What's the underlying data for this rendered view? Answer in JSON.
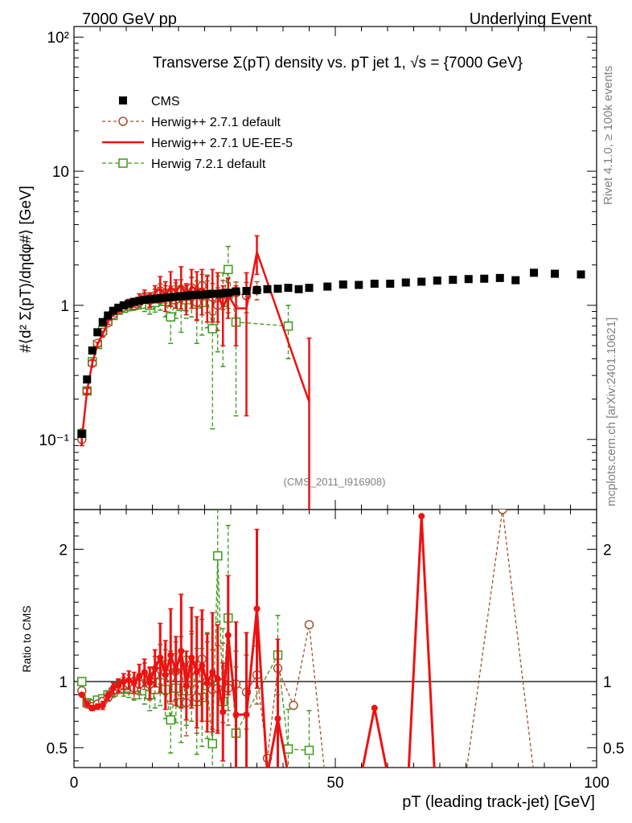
{
  "header": {
    "left": "7000 GeV pp",
    "right": "Underlying Event"
  },
  "side_labels": {
    "rivet": "Rivet 4.1.0, ≥ 100k events",
    "mcplots": "mcplots.cern.ch [arXiv:2401.10621]"
  },
  "chart_data": [
    {
      "type": "scatter",
      "panel": "main",
      "title": "Transverse Σ(pT) density vs. pT jet 1, √s = {7000 GeV}",
      "ylabel": "#⟨d² Σ(pT)/dηdφ#⟩ [GeV]",
      "xlabel": "pT (leading track-jet) [GeV]",
      "xlim": [
        0,
        100
      ],
      "ylim": [
        0.03,
        120
      ],
      "yscale": "log",
      "watermark": "(CMS_2011_I916908)",
      "y_tick_labels": [
        "10⁻¹",
        "1",
        "10",
        "10²"
      ],
      "x_tick_labels": [
        "0",
        "50",
        "100"
      ],
      "legend": [
        "CMS",
        "Herwig++ 2.7.1 default",
        "Herwig++ 2.7.1 UE-EE-5",
        "Herwig 7.2.1 default"
      ],
      "series": [
        {
          "name": "CMS",
          "color": "#000000",
          "marker": "filled-square",
          "x": [
            1.5,
            2.5,
            3.5,
            4.5,
            5.5,
            6.5,
            7.5,
            8.5,
            9.5,
            10.5,
            11.5,
            12.5,
            13.5,
            14.5,
            15.5,
            16.5,
            17.5,
            18.5,
            19.5,
            20.5,
            21.5,
            22.5,
            23.5,
            24.5,
            25.5,
            26.5,
            27.5,
            28.5,
            29.5,
            31,
            33,
            35,
            37,
            39,
            41,
            43,
            45,
            48.5,
            51.5,
            54.5,
            57.5,
            60.5,
            63.5,
            66.5,
            69.5,
            72.5,
            75.5,
            78.5,
            81.5,
            84.5,
            88,
            92,
            97
          ],
          "values": [
            0.11,
            0.28,
            0.46,
            0.63,
            0.75,
            0.84,
            0.91,
            0.96,
            1.0,
            1.03,
            1.06,
            1.08,
            1.1,
            1.11,
            1.12,
            1.13,
            1.14,
            1.15,
            1.16,
            1.17,
            1.18,
            1.19,
            1.2,
            1.2,
            1.21,
            1.22,
            1.22,
            1.23,
            1.24,
            1.27,
            1.28,
            1.3,
            1.32,
            1.33,
            1.35,
            1.32,
            1.35,
            1.38,
            1.43,
            1.42,
            1.45,
            1.45,
            1.48,
            1.5,
            1.53,
            1.55,
            1.57,
            1.58,
            1.6,
            1.54,
            1.75,
            1.72,
            1.7
          ]
        },
        {
          "name": "Herwig++ 2.7.1 default",
          "color": "#a0522d",
          "marker": "open-circle",
          "dash": "4,3",
          "x": [
            1.5,
            2.5,
            3.5,
            4.5,
            5.5,
            6.5,
            7.5,
            8.5,
            9.5,
            10.5,
            11.5,
            12.5,
            13.5,
            14.5,
            15.5,
            16.5,
            17.5,
            18.5,
            19.5,
            20.5,
            21.5,
            22.5,
            23.5,
            24.5,
            25.5,
            26.5,
            27.5,
            28.5,
            29.5,
            31,
            33,
            35
          ],
          "values": [
            0.1,
            0.23,
            0.37,
            0.52,
            0.63,
            0.74,
            0.85,
            0.92,
            0.97,
            1.01,
            1.0,
            1.06,
            1.14,
            1.09,
            1.18,
            1.28,
            1.22,
            1.19,
            1.25,
            1.31,
            1.16,
            1.35,
            1.05,
            1.4,
            1.2,
            1.15,
            1.0,
            1.23,
            1.18,
            1.24,
            1.18,
            1.3
          ],
          "errors": [
            0.01,
            0.01,
            0.02,
            0.02,
            0.03,
            0.03,
            0.04,
            0.04,
            0.05,
            0.06,
            0.07,
            0.08,
            0.1,
            0.12,
            0.14,
            0.16,
            0.18,
            0.2,
            0.22,
            0.24,
            0.25,
            0.26,
            0.28,
            0.3,
            0.32,
            0.3,
            0.35,
            0.3,
            0.3,
            0.25,
            0.3,
            0.2
          ]
        },
        {
          "name": "Herwig++ 2.7.1 UE-EE-5",
          "color": "#ee1111",
          "marker": "none",
          "x": [
            1.5,
            2.5,
            3.5,
            4.5,
            5.5,
            6.5,
            7.5,
            8.5,
            9.5,
            10.5,
            11.5,
            12.5,
            13.5,
            14.5,
            15.5,
            16.5,
            17.5,
            18.5,
            19.5,
            20.5,
            21.5,
            22.5,
            23.5,
            24.5,
            25.5,
            26.5,
            27.5,
            28.5,
            29.5,
            31,
            33,
            35,
            45
          ],
          "values": [
            0.1,
            0.23,
            0.37,
            0.51,
            0.61,
            0.75,
            0.87,
            0.93,
            1.0,
            1.04,
            1.05,
            1.12,
            1.18,
            1.1,
            1.24,
            1.34,
            1.2,
            1.38,
            1.25,
            1.44,
            1.15,
            1.4,
            1.28,
            1.35,
            1.2,
            1.3,
            1.25,
            0.95,
            1.2,
            0.95,
            0.95,
            2.5,
            0.19
          ],
          "errors": [
            0.01,
            0.01,
            0.02,
            0.02,
            0.03,
            0.03,
            0.04,
            0.05,
            0.06,
            0.07,
            0.08,
            0.1,
            0.12,
            0.14,
            0.16,
            0.3,
            0.3,
            0.4,
            0.3,
            0.5,
            0.3,
            0.45,
            0.5,
            0.5,
            0.45,
            0.55,
            0.5,
            0.45,
            0.4,
            0.45,
            0.8,
            0.8,
            0.38
          ]
        },
        {
          "name": "Herwig 7.2.1 default",
          "color": "#3a9a1a",
          "marker": "open-square",
          "dash": "5,3",
          "x": [
            1.5,
            2.5,
            3.5,
            4.5,
            5.5,
            6.5,
            7.5,
            8.5,
            9.5,
            10.5,
            11.5,
            12.5,
            13.5,
            14.5,
            15.5,
            16.5,
            17.5,
            18.5,
            19.5,
            20.5,
            21.5,
            22.5,
            23.5,
            24.5,
            25.5,
            26.5,
            27.5,
            28.5,
            29.5,
            31,
            41
          ],
          "values": [
            0.11,
            0.23,
            0.38,
            0.51,
            0.65,
            0.76,
            0.84,
            0.92,
            0.95,
            0.98,
            1.0,
            1.04,
            1.02,
            1.0,
            1.05,
            1.12,
            1.07,
            0.82,
            1.1,
            0.98,
            1.1,
            1.22,
            1.02,
            1.05,
            1.18,
            0.67,
            1.05,
            1.05,
            1.85,
            0.75,
            0.7
          ],
          "errors": [
            0.01,
            0.01,
            0.02,
            0.02,
            0.03,
            0.03,
            0.04,
            0.05,
            0.06,
            0.07,
            0.08,
            0.1,
            0.12,
            0.14,
            0.16,
            0.2,
            0.25,
            0.3,
            0.3,
            0.35,
            0.3,
            0.4,
            0.5,
            0.45,
            0.5,
            0.55,
            0.6,
            0.7,
            0.9,
            0.6,
            0.3
          ]
        }
      ]
    },
    {
      "type": "line",
      "panel": "ratio",
      "ylabel": "Ratio to CMS",
      "xlim": [
        0,
        100
      ],
      "ylim": [
        0.35,
        2.3
      ],
      "reference": 1,
      "y_tick_labels": [
        "0.5",
        "1",
        "2"
      ],
      "series": [
        {
          "name": "Herwig++ 2.7.1 default",
          "color": "#a0522d",
          "dash": "4,3",
          "marker": "open-circle",
          "x": [
            1.5,
            2.5,
            3.5,
            4.5,
            5.5,
            6.5,
            7.5,
            8.5,
            9.5,
            10.5,
            11.5,
            12.5,
            13.5,
            14.5,
            15.5,
            16.5,
            17.5,
            18.5,
            19.5,
            20.5,
            21.5,
            22.5,
            23.5,
            24.5,
            25.5,
            26.5,
            27.5,
            28.5,
            29.5,
            31,
            33,
            35,
            37,
            39,
            42,
            45,
            48,
            57,
            66,
            75,
            82,
            88
          ],
          "values": [
            0.93,
            0.83,
            0.81,
            0.83,
            0.85,
            0.88,
            0.93,
            0.96,
            0.97,
            0.98,
            0.95,
            0.98,
            1.04,
            0.98,
            1.05,
            1.13,
            1.07,
            1.03,
            1.08,
            1.12,
            0.84,
            1.13,
            0.88,
            1.17,
            1.0,
            0.94,
            0.95,
            0.99,
            0.95,
            0.98,
            0.92,
            1.05,
            0.42,
            1.1,
            0.82,
            1.43,
            0.3,
            0.3,
            0.3,
            0.3,
            2.3,
            0.3
          ],
          "errors": [
            0.01,
            0.01,
            0.02,
            0.02,
            0.03,
            0.03,
            0.04,
            0.05,
            0.06,
            0.07,
            0.08,
            0.08,
            0.1,
            0.12,
            0.14,
            0.15,
            0.17,
            0.2,
            0.22,
            0.22,
            0.25,
            0.25,
            0.27,
            0.3,
            0.3,
            0.3,
            0.32,
            0.3,
            0.28,
            0.25,
            0.28,
            0.22,
            0.0,
            0.0,
            0.0,
            0.0,
            0,
            0,
            0,
            0,
            0,
            0
          ]
        },
        {
          "name": "Herwig++ 2.7.1 UE-EE-5",
          "color": "#ee1111",
          "dash": "",
          "marker": "none",
          "x": [
            1.5,
            2.5,
            3.5,
            4.5,
            5.5,
            6.5,
            7.5,
            8.5,
            9.5,
            10.5,
            11.5,
            12.5,
            13.5,
            14.5,
            15.5,
            16.5,
            17.5,
            18.5,
            19.5,
            20.5,
            21.5,
            22.5,
            23.5,
            24.5,
            25.5,
            26.5,
            27.5,
            28.5,
            29.5,
            31,
            33,
            35,
            37,
            39,
            41,
            43,
            45,
            48.5,
            52,
            55,
            57.5,
            60,
            64,
            66.5,
            69,
            72
          ],
          "values": [
            0.9,
            0.83,
            0.8,
            0.81,
            0.82,
            0.89,
            0.95,
            0.97,
            1.0,
            1.01,
            0.99,
            1.04,
            1.07,
            0.99,
            1.1,
            1.18,
            1.05,
            1.2,
            1.08,
            1.23,
            0.97,
            1.18,
            1.07,
            1.12,
            0.99,
            1.07,
            1.02,
            0.77,
            1.35,
            0.75,
            0.75,
            1.55,
            0.3,
            0.72,
            0.3,
            0.3,
            0.3,
            0.3,
            0.3,
            0.3,
            0.8,
            0.3,
            0.3,
            2.25,
            0.3,
            0.3
          ],
          "errors": [
            0.01,
            0.01,
            0.02,
            0.02,
            0.03,
            0.03,
            0.04,
            0.05,
            0.06,
            0.07,
            0.08,
            0.09,
            0.1,
            0.12,
            0.14,
            0.26,
            0.26,
            0.35,
            0.26,
            0.43,
            0.26,
            0.38,
            0.42,
            0.42,
            0.37,
            0.45,
            0.41,
            0.37,
            0.45,
            0.7,
            0.62,
            0.6,
            0,
            0.6,
            0,
            0,
            0,
            0,
            0,
            0,
            0,
            0,
            0,
            0,
            0,
            0
          ]
        },
        {
          "name": "Herwig 7.2.1 default",
          "color": "#3a9a1a",
          "dash": "5,3",
          "marker": "open-square",
          "x": [
            1.5,
            2.5,
            3.5,
            4.5,
            5.5,
            6.5,
            7.5,
            8.5,
            9.5,
            10.5,
            11.5,
            12.5,
            13.5,
            14.5,
            15.5,
            16.5,
            17.5,
            18.5,
            19.5,
            20.5,
            21.5,
            22.5,
            23.5,
            24.5,
            25.5,
            26.5,
            27.5,
            28.5,
            29.5,
            31,
            39,
            41,
            45
          ],
          "values": [
            1.0,
            0.84,
            0.83,
            0.86,
            0.87,
            0.9,
            0.92,
            0.96,
            0.95,
            0.95,
            0.94,
            0.96,
            0.93,
            0.9,
            0.94,
            0.99,
            0.94,
            0.71,
            0.95,
            0.84,
            0.93,
            1.03,
            0.85,
            0.88,
            0.97,
            0.53,
            1.95,
            0.85,
            1.48,
            0.61,
            1.2,
            0.49,
            0.48
          ],
          "errors": [
            0.01,
            0.01,
            0.02,
            0.02,
            0.03,
            0.03,
            0.04,
            0.05,
            0.06,
            0.07,
            0.08,
            0.09,
            0.1,
            0.12,
            0.14,
            0.17,
            0.22,
            0.25,
            0.26,
            0.3,
            0.26,
            0.33,
            0.4,
            0.37,
            0.4,
            0.45,
            0.5,
            0.55,
            0.7,
            0.5,
            0.3,
            0.3,
            0.3
          ]
        }
      ]
    }
  ]
}
